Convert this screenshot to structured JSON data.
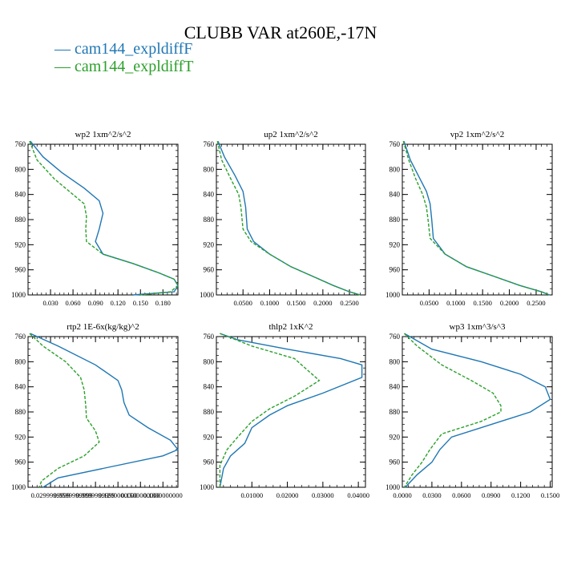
{
  "title": "CLUBB VAR at260E,-17N",
  "legend": [
    {
      "name": "— cam144_expldiffF",
      "color": "#1f77b4"
    },
    {
      "name": "— cam144_expldiffT",
      "color": "#2ca02c"
    }
  ],
  "chart_data": [
    {
      "type": "line",
      "title": "wp2   1xm^2/s^2",
      "xlim": [
        0.0,
        0.2
      ],
      "ylim": [
        760,
        1000
      ],
      "y_inverted": true,
      "xticks": [
        0.03,
        0.06,
        0.09,
        0.12,
        0.15,
        0.18
      ],
      "xtick_labels": [
        "0.030",
        "0.060",
        "0.090",
        "0.120",
        "0.150",
        "0.180"
      ],
      "yticks": [
        760,
        800,
        840,
        880,
        920,
        960,
        1000
      ],
      "series": [
        {
          "name": "cam144_expldiffF",
          "color": "#1f77b4",
          "dashed": false,
          "x": [
            0.003,
            0.02,
            0.045,
            0.075,
            0.095,
            0.1,
            0.095,
            0.09,
            0.1,
            0.14,
            0.175,
            0.195,
            0.2,
            0.195,
            0.14
          ],
          "y": [
            755,
            780,
            805,
            830,
            850,
            870,
            895,
            915,
            935,
            950,
            965,
            975,
            985,
            995,
            1000
          ]
        },
        {
          "name": "cam144_expldiffT",
          "color": "#2ca02c",
          "dashed": true,
          "x": [
            0.002,
            0.012,
            0.035,
            0.06,
            0.075,
            0.078,
            0.077,
            0.078,
            0.1,
            0.14,
            0.175,
            0.195,
            0.2,
            0.19,
            0.15
          ],
          "y": [
            755,
            785,
            815,
            840,
            855,
            875,
            895,
            915,
            935,
            950,
            965,
            975,
            985,
            995,
            1000
          ]
        }
      ]
    },
    {
      "type": "line",
      "title": "up2   1xm^2/s^2",
      "xlim": [
        0.0,
        0.28
      ],
      "ylim": [
        760,
        1000
      ],
      "y_inverted": true,
      "xticks": [
        0.05,
        0.1,
        0.15,
        0.2,
        0.25
      ],
      "xtick_labels": [
        "0.0500",
        "0.1000",
        "0.1500",
        "0.2000",
        "0.2500"
      ],
      "yticks": [
        760,
        800,
        840,
        880,
        920,
        960,
        1000
      ],
      "series": [
        {
          "name": "cam144_expldiffF",
          "color": "#1f77b4",
          "dashed": false,
          "x": [
            0.003,
            0.015,
            0.035,
            0.05,
            0.055,
            0.058,
            0.07,
            0.1,
            0.14,
            0.18,
            0.22,
            0.25,
            0.27
          ],
          "y": [
            755,
            780,
            810,
            835,
            860,
            895,
            915,
            935,
            955,
            970,
            985,
            995,
            1000
          ]
        },
        {
          "name": "cam144_expldiffT",
          "color": "#2ca02c",
          "dashed": true,
          "x": [
            0.002,
            0.01,
            0.027,
            0.042,
            0.046,
            0.05,
            0.065,
            0.1,
            0.14,
            0.18,
            0.22,
            0.25,
            0.27
          ],
          "y": [
            755,
            785,
            815,
            840,
            860,
            895,
            915,
            935,
            955,
            970,
            985,
            995,
            1000
          ]
        }
      ]
    },
    {
      "type": "line",
      "title": "vp2   1xm^2/s^2",
      "xlim": [
        0.0,
        0.28
      ],
      "ylim": [
        760,
        1000
      ],
      "y_inverted": true,
      "xticks": [
        0.05,
        0.1,
        0.15,
        0.2,
        0.25
      ],
      "xtick_labels": [
        "0.0500",
        "0.1000",
        "0.1500",
        "0.2000",
        "0.2500"
      ],
      "yticks": [
        760,
        800,
        840,
        880,
        920,
        960,
        1000
      ],
      "series": [
        {
          "name": "cam144_expldiffF",
          "color": "#1f77b4",
          "dashed": false,
          "x": [
            0.003,
            0.015,
            0.03,
            0.045,
            0.052,
            0.055,
            0.058,
            0.08,
            0.12,
            0.17,
            0.22,
            0.26,
            0.275
          ],
          "y": [
            755,
            785,
            810,
            835,
            855,
            880,
            910,
            935,
            955,
            970,
            985,
            995,
            1000
          ]
        },
        {
          "name": "cam144_expldiffT",
          "color": "#2ca02c",
          "dashed": true,
          "x": [
            0.002,
            0.012,
            0.025,
            0.038,
            0.045,
            0.048,
            0.052,
            0.08,
            0.12,
            0.17,
            0.22,
            0.26,
            0.275
          ],
          "y": [
            755,
            785,
            815,
            840,
            860,
            880,
            910,
            935,
            955,
            970,
            985,
            995,
            1000
          ]
        }
      ]
    },
    {
      "type": "line",
      "title": "rtp2   1E-6x(kg/kg)^2",
      "xlim": [
        0.0,
        0.2
      ],
      "ylim": [
        760,
        1000
      ],
      "y_inverted": true,
      "xticks": [
        0.03,
        0.06,
        0.09,
        0.12,
        0.15,
        0.18
      ],
      "xtick_labels": [
        "0.0299999999",
        "0.0599999999",
        "0.0899999999",
        "0.1200000000",
        "0.1500000000",
        "0.1800000000"
      ],
      "yticks": [
        760,
        800,
        840,
        880,
        920,
        960,
        1000
      ],
      "series": [
        {
          "name": "cam144_expldiffF",
          "color": "#1f77b4",
          "dashed": false,
          "x": [
            0.003,
            0.04,
            0.09,
            0.12,
            0.125,
            0.128,
            0.135,
            0.16,
            0.19,
            0.2,
            0.18,
            0.1,
            0.04,
            0.02
          ],
          "y": [
            755,
            775,
            805,
            830,
            845,
            865,
            885,
            905,
            925,
            940,
            950,
            970,
            985,
            1000
          ]
        },
        {
          "name": "cam144_expldiffT",
          "color": "#2ca02c",
          "dashed": true,
          "x": [
            0.002,
            0.02,
            0.05,
            0.07,
            0.075,
            0.077,
            0.078,
            0.09,
            0.095,
            0.075,
            0.04,
            0.018,
            0.015
          ],
          "y": [
            755,
            775,
            800,
            825,
            845,
            870,
            890,
            910,
            928,
            950,
            970,
            990,
            1000
          ]
        }
      ]
    },
    {
      "type": "line",
      "title": "thlp2   1xK^2",
      "xlim": [
        0.0,
        0.042
      ],
      "ylim": [
        760,
        1000
      ],
      "y_inverted": true,
      "xticks": [
        0.01,
        0.02,
        0.03,
        0.04
      ],
      "xtick_labels": [
        "0.01000",
        "0.02000",
        "0.03000",
        "0.04000"
      ],
      "yticks": [
        760,
        800,
        840,
        880,
        920,
        960,
        1000
      ],
      "series": [
        {
          "name": "cam144_expldiffF",
          "color": "#1f77b4",
          "dashed": false,
          "x": [
            0.001,
            0.006,
            0.02,
            0.035,
            0.041,
            0.041,
            0.03,
            0.02,
            0.015,
            0.01,
            0.008,
            0.004,
            0.002,
            0.001
          ],
          "y": [
            755,
            765,
            780,
            795,
            805,
            825,
            850,
            870,
            885,
            905,
            930,
            950,
            970,
            1000
          ]
        },
        {
          "name": "cam144_expldiffT",
          "color": "#2ca02c",
          "dashed": true,
          "x": [
            0.001,
            0.01,
            0.022,
            0.026,
            0.029,
            0.022,
            0.015,
            0.01,
            0.006,
            0.003,
            0.001,
            0.001
          ],
          "y": [
            755,
            775,
            795,
            815,
            830,
            855,
            875,
            895,
            920,
            940,
            965,
            1000
          ]
        }
      ]
    },
    {
      "type": "line",
      "title": "wp3   1xm^3/s^3",
      "xlim": [
        0.0,
        0.152
      ],
      "ylim": [
        760,
        1000
      ],
      "y_inverted": true,
      "xticks": [
        0.0,
        0.03,
        0.06,
        0.09,
        0.12,
        0.15
      ],
      "xtick_labels": [
        "0.0000",
        "0.0300",
        "0.0600",
        "0.0900",
        "0.1200",
        "0.1500"
      ],
      "yticks": [
        760,
        800,
        840,
        880,
        920,
        960,
        1000
      ],
      "series": [
        {
          "name": "cam144_expldiffF",
          "color": "#1f77b4",
          "dashed": false,
          "x": [
            0.002,
            0.03,
            0.08,
            0.12,
            0.145,
            0.15,
            0.13,
            0.09,
            0.05,
            0.038,
            0.03,
            0.015,
            0.003
          ],
          "y": [
            755,
            780,
            800,
            820,
            840,
            860,
            880,
            900,
            920,
            940,
            960,
            980,
            1000
          ]
        },
        {
          "name": "cam144_expldiffT",
          "color": "#2ca02c",
          "dashed": true,
          "x": [
            0.002,
            0.015,
            0.04,
            0.07,
            0.092,
            0.1,
            0.1,
            0.08,
            0.04,
            0.028,
            0.02,
            0.01,
            0.002
          ],
          "y": [
            755,
            775,
            805,
            830,
            850,
            870,
            880,
            895,
            915,
            940,
            960,
            980,
            1000
          ]
        }
      ]
    }
  ]
}
